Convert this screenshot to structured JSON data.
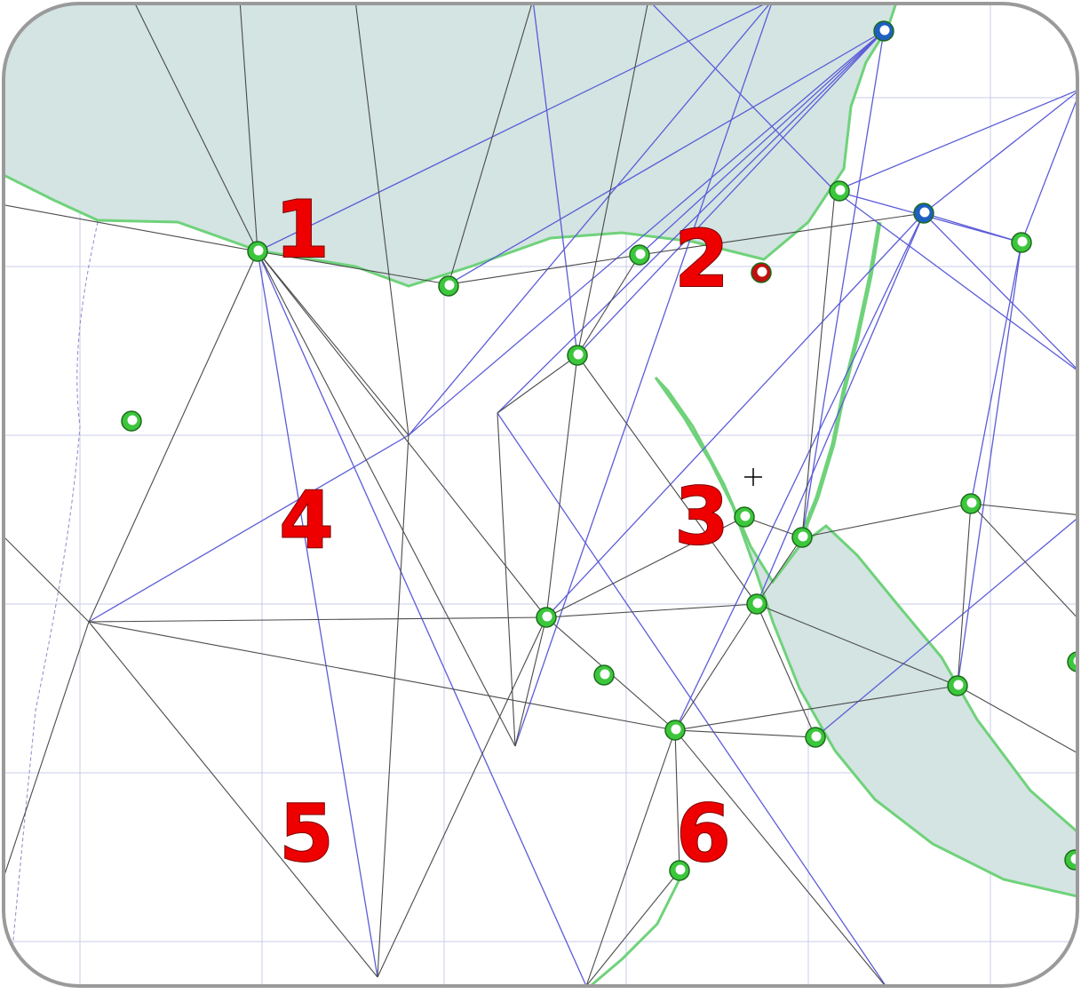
{
  "map": {
    "labels": [
      "1",
      "2",
      "3",
      "4",
      "5",
      "6"
    ]
  }
}
